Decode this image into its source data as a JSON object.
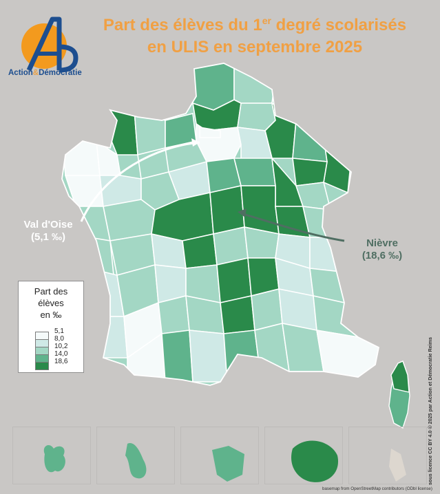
{
  "title": {
    "line1_a": "Part des élèves du 1",
    "line1_sup": "er",
    "line1_b": " degré scolarisés",
    "line2": "en ULIS en septembre 2025"
  },
  "logo": {
    "letters": "Ab",
    "name_a": "Action",
    "name_amp": "&",
    "name_b": "Démocratie"
  },
  "legend": {
    "title_lines": [
      "Part des",
      "élèves",
      "en ‰"
    ],
    "breaks": [
      "5,1",
      "8,0",
      "10,2",
      "14,0",
      "18,6"
    ],
    "colors": [
      "#f5fafa",
      "#cfe9e6",
      "#a3d7c4",
      "#5fb38c",
      "#2a8a4a"
    ]
  },
  "callouts": {
    "val_doise": {
      "name": "Val d'Oise",
      "value": "(5,1 ‰)"
    },
    "nievre": {
      "name": "Nièvre",
      "value": "(18,6 ‰)"
    }
  },
  "credits": {
    "license": "sous licence CC BY 4.0 © 2025 par Action et Démocratie Reims",
    "basemap": "basemap from OpenStreetMap contributors (ODbl license)"
  },
  "map_colors": {
    "lightest": "#f5fafa",
    "light": "#cfe9e6",
    "medium": "#a3d7c4",
    "medium_dark": "#5fb38c",
    "darkest": "#2a8a4a",
    "border": "#ffffff",
    "logo_orange": "#f39a1e",
    "logo_blue": "#1d4e8f",
    "title_orange": "#f0a044"
  }
}
